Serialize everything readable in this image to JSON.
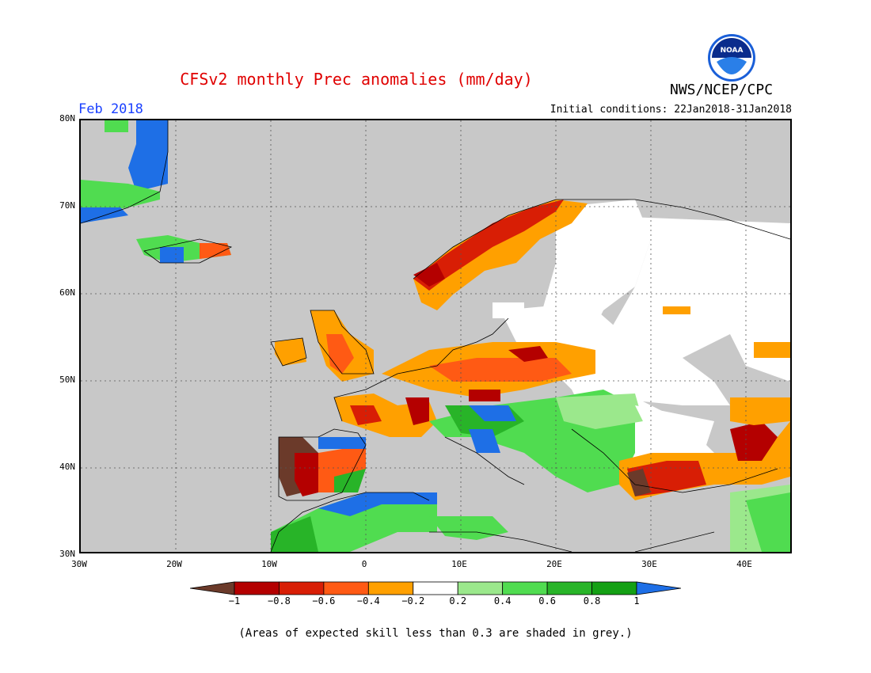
{
  "header": {
    "title": "CFSv2 monthly Prec anomalies (mm/day)",
    "agency": "NWS/NCEP/CPC",
    "month": "Feb 2018",
    "initial_conditions": "Initial conditions: 22Jan2018-31Jan2018",
    "logo_text": "NOAA"
  },
  "map": {
    "lat_labels": [
      "80N",
      "70N",
      "60N",
      "50N",
      "40N",
      "30N"
    ],
    "lon_labels": [
      "30W",
      "20W",
      "10W",
      "0",
      "10E",
      "20E",
      "30E",
      "40E"
    ],
    "lat_range": [
      30,
      80
    ],
    "lon_range": [
      -30,
      45
    ],
    "projection": "cylindrical",
    "grid": "dotted"
  },
  "legend": {
    "labels": [
      "−1",
      "−0.8",
      "−0.6",
      "−0.4",
      "−0.2",
      "0.2",
      "0.4",
      "0.6",
      "0.8",
      "1"
    ],
    "colors": [
      "#6b3a2a",
      "#b40000",
      "#d81e05",
      "#ff5a14",
      "#ffa000",
      "#ffffff",
      "#9be88c",
      "#50dc50",
      "#28b428",
      "#14a014",
      "#1e6fe6"
    ]
  },
  "footer": {
    "skill_note": "(Areas of expected skill less than 0.3 are shaded in grey.)"
  },
  "colors": {
    "ocean_grey": "#c8c8c8",
    "title_red": "#e00000",
    "month_blue": "#1a40ff"
  }
}
